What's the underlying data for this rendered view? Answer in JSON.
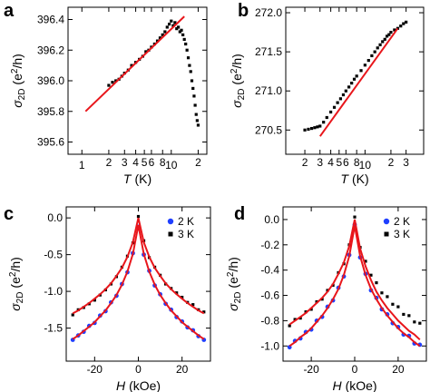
{
  "chart_data": [
    {
      "panel": "a",
      "type": "scatter",
      "xscale": "log",
      "xlabel": {
        "symbol": "T",
        "unit": "(K)"
      },
      "ylabel": {
        "symbol": "σ",
        "subscript": "2D",
        "unit_open": "(e",
        "superscript": "2",
        "unit_close": "/h)"
      },
      "xlim": [
        0.7,
        25
      ],
      "ylim": [
        395.52,
        396.48
      ],
      "xticks": [
        1,
        2,
        3,
        4,
        5,
        6,
        8,
        10,
        {
          "value": 20,
          "label": "2"
        }
      ],
      "yticks": [
        {
          "value": 395.6,
          "label": "395.6"
        },
        395.8,
        {
          "value": 396.0,
          "label": "396.0"
        },
        396.2,
        396.4
      ],
      "color": "#000000",
      "x": [
        2.0,
        2.2,
        2.4,
        2.6,
        2.8,
        3.0,
        3.3,
        3.6,
        4.0,
        4.4,
        4.8,
        5.2,
        5.6,
        6.0,
        6.5,
        7.0,
        7.5,
        8.0,
        8.5,
        9.0,
        9.5,
        10.0,
        10.5,
        11.0,
        11.5,
        12.0,
        12.5,
        13.0,
        13.5,
        14.0,
        14.5,
        15.0,
        15.5,
        16.0,
        16.5,
        17.0,
        17.5,
        18.0,
        18.5,
        19.0,
        19.5,
        20.0
      ],
      "values": [
        395.97,
        395.99,
        396.0,
        396.01,
        396.03,
        396.05,
        396.07,
        396.1,
        396.12,
        396.14,
        396.16,
        396.19,
        396.2,
        396.22,
        396.24,
        396.26,
        396.28,
        396.3,
        396.32,
        396.35,
        396.37,
        396.39,
        396.36,
        396.38,
        396.34,
        396.35,
        396.32,
        396.33,
        396.3,
        396.27,
        396.24,
        396.2,
        396.15,
        396.1,
        396.06,
        396.0,
        395.95,
        395.9,
        395.84,
        395.78,
        395.74,
        395.71
      ],
      "fit": {
        "color": "#e8161b",
        "x": [
          1.1,
          14
        ],
        "values": [
          395.8,
          396.42
        ]
      }
    },
    {
      "panel": "b",
      "type": "scatter",
      "xscale": "log",
      "xlabel": {
        "symbol": "T",
        "unit": "(K)"
      },
      "ylabel": {
        "symbol": "σ",
        "subscript": "2D",
        "unit_open": "(e",
        "superscript": "2",
        "unit_close": "/h)"
      },
      "xlim": [
        1.2,
        48
      ],
      "ylim": [
        270.19,
        272.07
      ],
      "xticks": [
        2,
        3,
        4,
        5,
        6,
        8,
        10,
        {
          "value": 20,
          "label": "2"
        },
        {
          "value": 30,
          "label": "3"
        }
      ],
      "yticks": [
        270.5,
        {
          "value": 271.0,
          "label": "271.0"
        },
        271.5,
        {
          "value": 272.0,
          "label": "272.0"
        }
      ],
      "color": "#000000",
      "x": [
        2.0,
        2.2,
        2.4,
        2.6,
        2.8,
        3.0,
        3.3,
        3.6,
        4.0,
        4.4,
        4.8,
        5.2,
        5.6,
        6.0,
        6.5,
        7.0,
        7.5,
        8.0,
        9.0,
        10,
        11,
        12,
        13,
        14,
        15,
        16,
        17,
        18,
        19,
        20,
        22,
        24,
        26,
        28,
        30
      ],
      "values": [
        270.5,
        270.51,
        270.52,
        270.53,
        270.54,
        270.55,
        270.6,
        270.66,
        270.73,
        270.79,
        270.85,
        270.9,
        270.95,
        271.0,
        271.05,
        271.1,
        271.15,
        271.19,
        271.26,
        271.33,
        271.39,
        271.45,
        271.5,
        271.55,
        271.59,
        271.63,
        271.66,
        271.7,
        271.72,
        271.75,
        271.78,
        271.8,
        271.83,
        271.86,
        271.88
      ],
      "fit": {
        "color": "#e8161b",
        "x": [
          3,
          24
        ],
        "values": [
          270.42,
          271.8
        ]
      }
    },
    {
      "panel": "c",
      "type": "scatter",
      "xlabel": {
        "symbol": "H",
        "unit": "(kOe)"
      },
      "ylabel": {
        "symbol": "σ",
        "subscript": "2D",
        "unit_open": "(e",
        "superscript": "2",
        "unit_close": "/h)"
      },
      "xlim": [
        -33,
        33
      ],
      "ylim": [
        -1.95,
        0.15
      ],
      "xticks": [
        -20,
        0,
        20
      ],
      "yticks": [
        -1.5,
        {
          "value": -1.0,
          "label": "-1.0"
        },
        -0.5,
        {
          "value": 0.0,
          "label": "0.0"
        }
      ],
      "legend": "upper right",
      "x": [
        -30,
        -27.5,
        -25,
        -22.5,
        -20,
        -17.5,
        -15,
        -12.5,
        -10,
        -7.5,
        -5,
        -2.5,
        0,
        2.5,
        5,
        7.5,
        10,
        12.5,
        15,
        17.5,
        20,
        22.5,
        25,
        27.5,
        30
      ],
      "series": [
        {
          "name": "2 K",
          "color": "#1f3fff",
          "marker": "circle",
          "values": [
            -1.66,
            -1.6,
            -1.55,
            -1.47,
            -1.43,
            -1.33,
            -1.27,
            -1.15,
            -1.06,
            -0.9,
            -0.74,
            -0.48,
            -0.12,
            -0.5,
            -0.72,
            -0.92,
            -1.04,
            -1.17,
            -1.25,
            -1.35,
            -1.41,
            -1.49,
            -1.53,
            -1.61,
            -1.66
          ]
        },
        {
          "name": "3 K",
          "color": "#000000",
          "marker": "square",
          "values": [
            -1.32,
            -1.25,
            -1.22,
            -1.17,
            -1.12,
            -1.05,
            -0.98,
            -0.9,
            -0.8,
            -0.67,
            -0.52,
            -0.34,
            0.02,
            -0.31,
            -0.54,
            -0.67,
            -0.78,
            -0.9,
            -0.96,
            -1.02,
            -1.08,
            -1.15,
            -1.18,
            -1.25,
            -1.28
          ]
        }
      ],
      "fits": [
        {
          "color": "#e8161b",
          "values": [
            -1.65,
            -1.6,
            -1.54,
            -1.48,
            -1.42,
            -1.34,
            -1.26,
            -1.16,
            -1.05,
            -0.91,
            -0.73,
            -0.49,
            -0.1,
            -0.49,
            -0.73,
            -0.91,
            -1.05,
            -1.16,
            -1.26,
            -1.34,
            -1.42,
            -1.48,
            -1.54,
            -1.6,
            -1.65
          ]
        },
        {
          "color": "#e8161b",
          "values": [
            -1.3,
            -1.26,
            -1.21,
            -1.16,
            -1.1,
            -1.04,
            -0.97,
            -0.89,
            -0.79,
            -0.68,
            -0.53,
            -0.33,
            0,
            -0.33,
            -0.53,
            -0.68,
            -0.79,
            -0.89,
            -0.97,
            -1.04,
            -1.1,
            -1.16,
            -1.21,
            -1.26,
            -1.3
          ]
        }
      ]
    },
    {
      "panel": "d",
      "type": "scatter",
      "xlabel": {
        "symbol": "H",
        "unit": "(kOe)"
      },
      "ylabel": {
        "symbol": "σ",
        "subscript": "2D",
        "unit_open": "(e",
        "superscript": "2",
        "unit_close": "/h)"
      },
      "xlim": [
        -33,
        33
      ],
      "ylim": [
        -1.12,
        0.1
      ],
      "xticks": [
        -20,
        0,
        20
      ],
      "yticks": [
        {
          "value": -1.0,
          "label": "-1.0"
        },
        -0.8,
        -0.6,
        -0.4,
        -0.2,
        {
          "value": 0.0,
          "label": "0.0"
        }
      ],
      "legend": "upper right",
      "x": [
        -30,
        -27.5,
        -25,
        -22.5,
        -20,
        -17.5,
        -15,
        -12.5,
        -10,
        -7.5,
        -5,
        -2.5,
        0,
        2.5,
        5,
        7.5,
        10,
        12.5,
        15,
        17.5,
        20,
        22.5,
        25,
        27.5,
        30
      ],
      "series": [
        {
          "name": "2 K",
          "color": "#1f3fff",
          "marker": "circle",
          "values": [
            -1.01,
            -0.96,
            -0.94,
            -0.89,
            -0.87,
            -0.8,
            -0.77,
            -0.69,
            -0.64,
            -0.54,
            -0.45,
            -0.28,
            -0.04,
            -0.3,
            -0.43,
            -0.56,
            -0.62,
            -0.71,
            -0.75,
            -0.82,
            -0.85,
            -0.91,
            -0.92,
            -0.98,
            -0.99
          ]
        },
        {
          "name": "3 K",
          "color": "#000000",
          "marker": "square",
          "values": [
            -0.84,
            -0.79,
            -0.78,
            -0.73,
            -0.71,
            -0.65,
            -0.63,
            -0.56,
            -0.52,
            -0.42,
            -0.35,
            -0.2,
            0.02,
            -0.22,
            -0.33,
            -0.44,
            -0.5,
            -0.58,
            -0.61,
            -0.67,
            -0.69,
            -0.75,
            -0.76,
            -0.81,
            -0.82
          ]
        }
      ],
      "fits": [
        {
          "color": "#e8161b",
          "values": [
            -1.0,
            -0.97,
            -0.93,
            -0.9,
            -0.86,
            -0.81,
            -0.76,
            -0.7,
            -0.63,
            -0.55,
            -0.44,
            -0.29,
            -0.05,
            -0.29,
            -0.44,
            -0.55,
            -0.63,
            -0.7,
            -0.76,
            -0.81,
            -0.86,
            -0.9,
            -0.93,
            -0.97,
            -1.0
          ]
        },
        {
          "color": "#e8161b",
          "values": [
            -0.83,
            -0.8,
            -0.77,
            -0.74,
            -0.7,
            -0.66,
            -0.62,
            -0.57,
            -0.51,
            -0.43,
            -0.34,
            -0.21,
            0,
            -0.23,
            -0.37,
            -0.48,
            -0.57,
            -0.64,
            -0.7,
            -0.75,
            -0.8,
            -0.84,
            -0.88,
            -0.91,
            -0.95
          ]
        }
      ]
    }
  ]
}
